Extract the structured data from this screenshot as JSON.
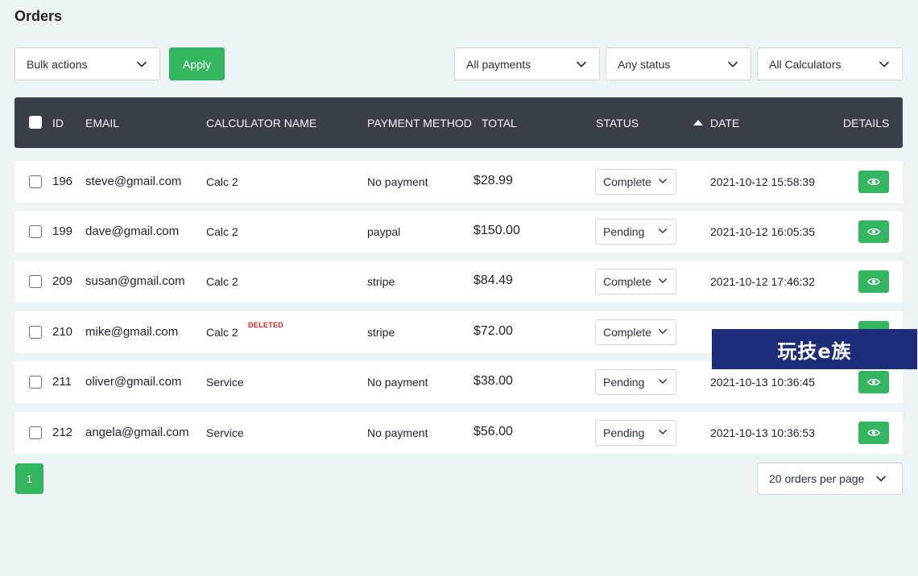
{
  "page_title": "Orders",
  "toolbar": {
    "bulk_actions": "Bulk actions",
    "apply_label": "Apply",
    "payments_filter": "All payments",
    "status_filter": "Any status",
    "calculators_filter": "All Calculators"
  },
  "columns": {
    "id": "ID",
    "email": "EMAIL",
    "calculator": "CALCULATOR NAME",
    "payment": "PAYMENT METHOD",
    "total": "TOTAL",
    "status": "STATUS",
    "date": "DATE",
    "details": "DETAILS"
  },
  "orders": [
    {
      "id": "196",
      "email": "steve@gmail.com",
      "calculator": "Calc 2",
      "deleted": "",
      "payment": "No payment",
      "total": "$28.99",
      "status": "Complete",
      "date": "2021-10-12 15:58:39"
    },
    {
      "id": "199",
      "email": "dave@gmail.com",
      "calculator": "Calc 2",
      "deleted": "",
      "payment": "paypal",
      "total": "$150.00",
      "status": "Pending",
      "date": "2021-10-12 16:05:35"
    },
    {
      "id": "209",
      "email": "susan@gmail.com",
      "calculator": "Calc 2",
      "deleted": "",
      "payment": "stripe",
      "total": "$84.49",
      "status": "Complete",
      "date": "2021-10-12 17:46:32"
    },
    {
      "id": "210",
      "email": "mike@gmail.com",
      "calculator": "Calc 2",
      "deleted": "DELETED",
      "payment": "stripe",
      "total": "$72.00",
      "status": "Complete",
      "date": ""
    },
    {
      "id": "211",
      "email": "oliver@gmail.com",
      "calculator": "Service",
      "deleted": "",
      "payment": "No payment",
      "total": "$38.00",
      "status": "Pending",
      "date": "2021-10-13 10:36:45"
    },
    {
      "id": "212",
      "email": "angela@gmail.com",
      "calculator": "Service",
      "deleted": "",
      "payment": "No payment",
      "total": "$56.00",
      "status": "Pending",
      "date": "2021-10-13 10:36:53"
    }
  ],
  "pagination": {
    "current_page": "1",
    "per_page": "20 orders per page"
  },
  "watermark": "玩技e族",
  "colors": {
    "accent_green": "#34b55f",
    "header_bg": "#3a3e48",
    "deleted_red": "#e02424"
  },
  "icons": {
    "dropdown": "chevron-down-icon",
    "details": "eye-icon",
    "sort": "sort-ascending-icon"
  }
}
